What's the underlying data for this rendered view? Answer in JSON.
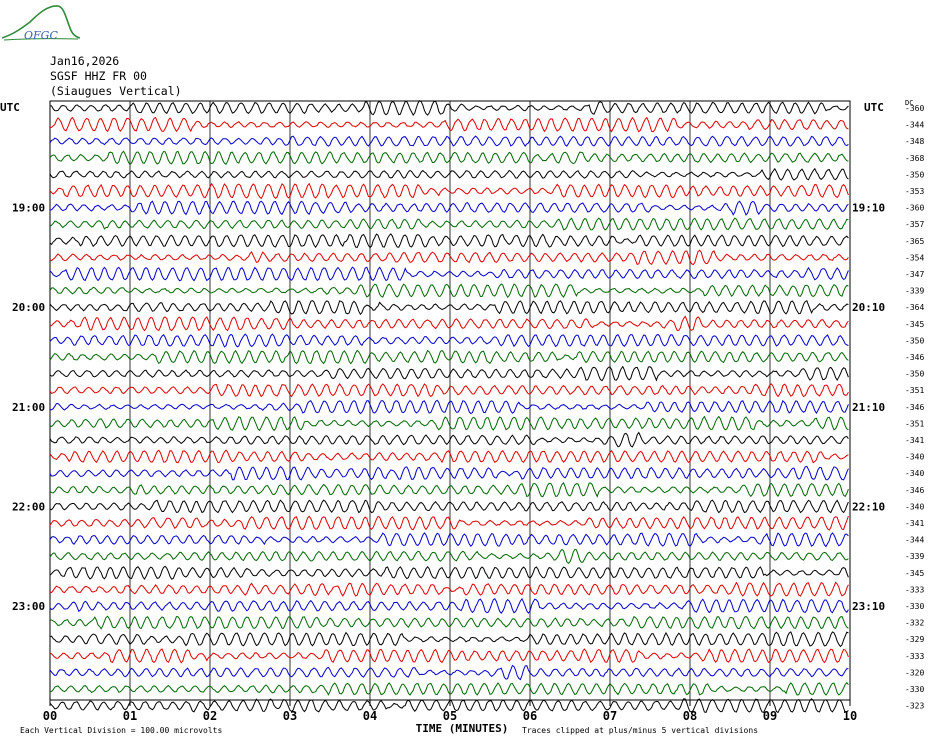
{
  "header": {
    "logo_text": "OFGC",
    "date": "Jan16,2026",
    "station": "SGSF HHZ FR 00",
    "location": "(Siaugues Vertical)"
  },
  "footer": {
    "division_note": "Each Vertical Division =  100.00 microvolts",
    "clip_note": "Traces clipped at plus/minus 5 vertical divisions"
  },
  "colors": {
    "trace_cycle": [
      "#000000",
      "#dd0000",
      "#0000cc",
      "#006600"
    ],
    "grid": "#000000"
  },
  "chart_data": {
    "type": "line",
    "xlabel": "TIME (MINUTES)",
    "x_ticks": [
      "00",
      "01",
      "02",
      "03",
      "04",
      "05",
      "06",
      "07",
      "08",
      "09",
      "10"
    ],
    "xlim": [
      0,
      10
    ],
    "left_axis_title": "UTC",
    "right_axis_title": "UTC",
    "dc_label": "DC",
    "left_time_labels": [
      {
        "trace": 6,
        "label": "19:00"
      },
      {
        "trace": 12,
        "label": "20:00"
      },
      {
        "trace": 18,
        "label": "21:00"
      },
      {
        "trace": 24,
        "label": "22:00"
      },
      {
        "trace": 30,
        "label": "23:00"
      }
    ],
    "right_time_labels": [
      {
        "trace": 6,
        "label": "19:10"
      },
      {
        "trace": 12,
        "label": "20:10"
      },
      {
        "trace": 18,
        "label": "21:10"
      },
      {
        "trace": 24,
        "label": "22:10"
      },
      {
        "trace": 30,
        "label": "23:10"
      }
    ],
    "dc_offsets": [
      "-360",
      "-344",
      "-348",
      "-368",
      "-350",
      "-353",
      "-360",
      "-357",
      "-365",
      "-354",
      "-347",
      "-339",
      "-364",
      "-345",
      "-350",
      "-346",
      "-350",
      "-351",
      "-346",
      "-351",
      "-341",
      "-340",
      "-340",
      "-346",
      "-340",
      "-341",
      "-344",
      "-339",
      "-345",
      "-333",
      "-330",
      "-332",
      "-329",
      "-333",
      "-320",
      "-330",
      "-323"
    ],
    "trace_count": 37
  }
}
